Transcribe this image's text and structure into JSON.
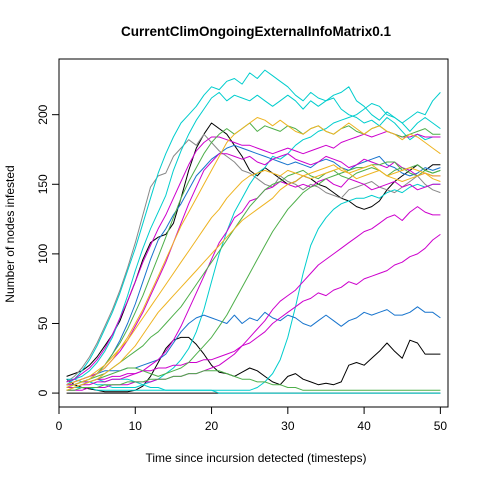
{
  "chart_data": {
    "type": "line",
    "title": "CurrentClimOngoingExternalInfoMatrix0.1",
    "xlabel": "Time since incursion detected (timesteps)",
    "ylabel": "Number of nodes infested",
    "xlim": [
      0,
      51
    ],
    "ylim": [
      -10,
      240
    ],
    "x_ticks": [
      0,
      10,
      20,
      30,
      40,
      50
    ],
    "y_ticks": [
      0,
      50,
      100,
      150,
      200
    ],
    "grid": false,
    "legend": "none",
    "x": [
      1,
      2,
      3,
      4,
      5,
      6,
      7,
      8,
      9,
      10,
      11,
      12,
      13,
      14,
      15,
      16,
      17,
      18,
      19,
      20,
      21,
      22,
      23,
      24,
      25,
      26,
      27,
      28,
      29,
      30,
      31,
      32,
      33,
      34,
      35,
      36,
      37,
      38,
      39,
      40,
      41,
      42,
      43,
      44,
      45,
      46,
      47,
      48,
      49,
      50
    ],
    "series": [
      {
        "color": "#000000",
        "values": [
          10,
          6,
          4,
          3,
          2,
          1,
          1,
          1,
          1,
          2,
          5,
          12,
          22,
          32,
          38,
          40,
          40,
          35,
          28,
          20,
          15,
          14,
          12,
          15,
          18,
          16,
          12,
          8,
          6,
          12,
          14,
          10,
          8,
          6,
          7,
          6,
          8,
          20,
          22,
          20,
          25,
          30,
          36,
          30,
          25,
          38,
          36,
          28,
          28,
          28
        ]
      },
      {
        "color": "#000000",
        "values": [
          12,
          14,
          16,
          20,
          26,
          34,
          42,
          52,
          66,
          80,
          96,
          108,
          112,
          114,
          122,
          140,
          160,
          176,
          186,
          194,
          190,
          186,
          178,
          170,
          160,
          156,
          162,
          158,
          154,
          150,
          152,
          156,
          154,
          150,
          148,
          144,
          140,
          138,
          134,
          132,
          134,
          138,
          146,
          152,
          156,
          160,
          164,
          160,
          164,
          164
        ]
      },
      {
        "color": "#000000",
        "values": [
          0,
          0,
          0,
          0,
          0,
          0,
          0,
          0,
          0,
          0,
          0,
          0,
          0,
          0,
          0,
          0,
          0,
          0,
          0,
          0,
          0,
          0,
          0,
          0,
          0,
          0,
          0,
          0,
          0,
          0,
          0,
          0,
          0,
          0,
          0,
          0,
          0,
          0,
          0,
          0,
          0,
          0,
          0,
          0,
          0,
          0,
          0,
          0,
          0,
          0
        ]
      },
      {
        "color": "#888888",
        "values": [
          8,
          12,
          18,
          26,
          36,
          48,
          60,
          74,
          90,
          108,
          128,
          148,
          156,
          158,
          170,
          176,
          182,
          178,
          186,
          180,
          174,
          170,
          166,
          160,
          158,
          154,
          150,
          148,
          156,
          152,
          150,
          146,
          150,
          148,
          144,
          142,
          140,
          146,
          148,
          150,
          152,
          148,
          146,
          144,
          148,
          152,
          156,
          150,
          146,
          144
        ]
      },
      {
        "color": "#00CDCD",
        "values": [
          10,
          10,
          8,
          8,
          6,
          6,
          4,
          4,
          4,
          4,
          6,
          8,
          10,
          14,
          18,
          24,
          32,
          44,
          60,
          80,
          100,
          116,
          130,
          140,
          150,
          158,
          162,
          170,
          168,
          172,
          178,
          182,
          184,
          188,
          190,
          194,
          196,
          198,
          200,
          204,
          208,
          206,
          200,
          198,
          194,
          198,
          202,
          200,
          210,
          216
        ]
      },
      {
        "color": "#00CDCD",
        "values": [
          6,
          10,
          16,
          24,
          34,
          46,
          58,
          72,
          88,
          104,
          122,
          140,
          158,
          172,
          184,
          194,
          200,
          206,
          214,
          220,
          218,
          224,
          226,
          222,
          230,
          226,
          232,
          228,
          224,
          220,
          214,
          210,
          216,
          212,
          210,
          214,
          216,
          220,
          210,
          206,
          200,
          196,
          202,
          198,
          194,
          188,
          194,
          198,
          194,
          190
        ]
      },
      {
        "color": "#00CDCD",
        "values": [
          4,
          4,
          4,
          4,
          2,
          2,
          2,
          2,
          2,
          2,
          2,
          2,
          2,
          2,
          2,
          2,
          2,
          2,
          2,
          2,
          2,
          2,
          2,
          2,
          2,
          4,
          8,
          14,
          24,
          40,
          62,
          86,
          106,
          118,
          126,
          132,
          136,
          138,
          140,
          140,
          142,
          140,
          144,
          146,
          144,
          148,
          150,
          148,
          150,
          150
        ]
      },
      {
        "color": "#00CDCD",
        "values": [
          8,
          10,
          12,
          16,
          22,
          30,
          40,
          54,
          70,
          88,
          104,
          118,
          130,
          142,
          160,
          174,
          186,
          196,
          204,
          212,
          216,
          210,
          214,
          212,
          210,
          214,
          210,
          206,
          210,
          214,
          210,
          204,
          210,
          206,
          210,
          212,
          204,
          200,
          198,
          194,
          196,
          192,
          198,
          194,
          188,
          182,
          186,
          182,
          184,
          184
        ]
      },
      {
        "color": "#00CDCD",
        "values": [
          4,
          4,
          6,
          8,
          10,
          8,
          10,
          10,
          10,
          8,
          6,
          4,
          4,
          2,
          2,
          2,
          2,
          2,
          2,
          2,
          0,
          0,
          0,
          0,
          0,
          0,
          0,
          0,
          0,
          0,
          0,
          0,
          0,
          0,
          0,
          0,
          0,
          0,
          0,
          0,
          0,
          0,
          0,
          0,
          0,
          0,
          0,
          0,
          0,
          0
        ]
      },
      {
        "color": "#1874CD",
        "values": [
          6,
          8,
          10,
          12,
          14,
          16,
          16,
          16,
          18,
          18,
          20,
          22,
          24,
          28,
          36,
          44,
          50,
          54,
          56,
          54,
          52,
          50,
          56,
          50,
          54,
          52,
          58,
          54,
          52,
          56,
          54,
          50,
          48,
          52,
          56,
          52,
          48,
          52,
          54,
          58,
          56,
          58,
          60,
          56,
          56,
          58,
          62,
          58,
          58,
          54
        ]
      },
      {
        "color": "#1874CD",
        "values": [
          6,
          6,
          8,
          10,
          14,
          20,
          28,
          38,
          50,
          64,
          80,
          96,
          110,
          118,
          128,
          136,
          146,
          156,
          162,
          168,
          172,
          176,
          178,
          176,
          174,
          172,
          170,
          168,
          166,
          164,
          166,
          164,
          162,
          166,
          168,
          166,
          162,
          160,
          164,
          166,
          168,
          170,
          164,
          162,
          158,
          156,
          158,
          162,
          160,
          162
        ]
      },
      {
        "color": "#CD00CD",
        "values": [
          6,
          8,
          10,
          12,
          14,
          18,
          24,
          30,
          38,
          48,
          58,
          70,
          82,
          94,
          108,
          122,
          136,
          148,
          160,
          166,
          172,
          172,
          170,
          168,
          170,
          166,
          164,
          168,
          170,
          172,
          168,
          166,
          164,
          166,
          170,
          168,
          166,
          162,
          164,
          168,
          166,
          164,
          162,
          166,
          162,
          160,
          156,
          158,
          156,
          156
        ]
      },
      {
        "color": "#CD00CD",
        "values": [
          4,
          4,
          6,
          6,
          8,
          8,
          10,
          10,
          12,
          14,
          16,
          20,
          24,
          30,
          38,
          48,
          60,
          72,
          84,
          96,
          108,
          116,
          126,
          130,
          138,
          140,
          146,
          148,
          152,
          150,
          148,
          150,
          148,
          152,
          154,
          150,
          148,
          154,
          152,
          150,
          146,
          148,
          150,
          152,
          148,
          150,
          146,
          148,
          150,
          150
        ]
      },
      {
        "color": "#CD00CD",
        "values": [
          2,
          2,
          2,
          4,
          4,
          4,
          6,
          6,
          6,
          8,
          8,
          8,
          10,
          10,
          12,
          12,
          14,
          14,
          16,
          18,
          20,
          24,
          28,
          34,
          40,
          46,
          52,
          60,
          66,
          70,
          74,
          80,
          86,
          92,
          96,
          100,
          104,
          108,
          112,
          116,
          118,
          122,
          126,
          128,
          124,
          130,
          134,
          130,
          128,
          128
        ]
      },
      {
        "color": "#CD00CD",
        "values": [
          6,
          6,
          8,
          8,
          10,
          10,
          12,
          12,
          14,
          14,
          16,
          16,
          18,
          18,
          20,
          20,
          22,
          22,
          24,
          24,
          26,
          28,
          30,
          34,
          36,
          40,
          44,
          50,
          54,
          58,
          62,
          66,
          68,
          72,
          70,
          74,
          76,
          80,
          78,
          82,
          84,
          86,
          88,
          92,
          94,
          98,
          100,
          104,
          110,
          114
        ]
      },
      {
        "color": "#CD00CD",
        "values": [
          8,
          10,
          14,
          18,
          24,
          32,
          42,
          54,
          66,
          80,
          94,
          106,
          118,
          128,
          140,
          152,
          164,
          174,
          180,
          184,
          184,
          182,
          180,
          178,
          178,
          176,
          174,
          172,
          174,
          176,
          174,
          172,
          174,
          176,
          178,
          176,
          180,
          182,
          184,
          186,
          184,
          186,
          188,
          186,
          184,
          184,
          186,
          184,
          184,
          184
        ]
      },
      {
        "color": "#4EAF4A",
        "values": [
          2,
          4,
          6,
          8,
          10,
          12,
          14,
          16,
          18,
          18,
          16,
          14,
          12,
          14,
          16,
          18,
          22,
          28,
          34,
          40,
          48,
          56,
          66,
          76,
          86,
          96,
          106,
          116,
          124,
          132,
          138,
          144,
          148,
          150,
          154,
          156,
          158,
          160,
          162,
          162,
          164,
          164,
          166,
          166,
          160,
          162,
          164,
          160,
          158,
          160
        ]
      },
      {
        "color": "#4EAF4A",
        "values": [
          4,
          6,
          8,
          10,
          14,
          20,
          28,
          36,
          46,
          58,
          70,
          84,
          98,
          112,
          126,
          140,
          152,
          162,
          172,
          180,
          186,
          190,
          186,
          190,
          194,
          188,
          192,
          190,
          188,
          192,
          190,
          186,
          190,
          192,
          188,
          186,
          190,
          192,
          188,
          186,
          190,
          192,
          188,
          186,
          184,
          186,
          188,
          190,
          186,
          186
        ]
      },
      {
        "color": "#4EAF4A",
        "values": [
          4,
          6,
          8,
          10,
          12,
          14,
          18,
          22,
          26,
          30,
          34,
          40,
          44,
          50,
          56,
          62,
          70,
          78,
          86,
          94,
          102,
          110,
          118,
          126,
          134,
          140,
          146,
          150,
          152,
          156,
          158,
          160,
          156,
          154,
          158,
          160,
          156,
          154,
          158,
          160,
          162,
          160,
          156,
          160,
          162,
          158,
          156,
          160,
          158,
          160
        ]
      },
      {
        "color": "#4EAF4A",
        "values": [
          2,
          2,
          4,
          4,
          4,
          6,
          6,
          6,
          8,
          8,
          8,
          10,
          10,
          10,
          12,
          12,
          14,
          14,
          16,
          16,
          16,
          14,
          12,
          10,
          10,
          8,
          8,
          6,
          6,
          4,
          4,
          2,
          2,
          2,
          2,
          2,
          2,
          2,
          2,
          2,
          2,
          2,
          2,
          2,
          2,
          2,
          2,
          2,
          2,
          2
        ]
      },
      {
        "color": "#EEB422",
        "values": [
          4,
          6,
          8,
          10,
          14,
          18,
          24,
          32,
          40,
          50,
          60,
          72,
          84,
          96,
          108,
          120,
          130,
          140,
          150,
          160,
          170,
          180,
          186,
          190,
          194,
          198,
          196,
          192,
          196,
          192,
          188,
          186,
          190,
          192,
          188,
          186,
          190,
          194,
          190,
          186,
          190,
          192,
          188,
          186,
          182,
          186,
          184,
          180,
          176,
          172
        ]
      },
      {
        "color": "#EEB422",
        "values": [
          2,
          4,
          6,
          8,
          10,
          14,
          18,
          22,
          28,
          34,
          42,
          50,
          58,
          64,
          70,
          76,
          82,
          88,
          94,
          100,
          106,
          112,
          118,
          124,
          128,
          132,
          136,
          140,
          146,
          150,
          152,
          156,
          158,
          160,
          162,
          164,
          160,
          158,
          160,
          162,
          164,
          160,
          156,
          158,
          160,
          162,
          160,
          158,
          156,
          156
        ]
      },
      {
        "color": "#EEB422",
        "values": [
          6,
          8,
          10,
          12,
          16,
          20,
          26,
          32,
          38,
          46,
          54,
          62,
          70,
          78,
          86,
          94,
          102,
          110,
          118,
          126,
          132,
          140,
          146,
          152,
          156,
          158,
          160,
          158,
          156,
          160,
          158,
          156,
          154,
          156,
          158,
          160,
          162,
          158,
          154,
          156,
          158,
          160,
          156,
          154,
          152,
          154,
          156,
          158,
          154,
          152
        ]
      }
    ]
  }
}
